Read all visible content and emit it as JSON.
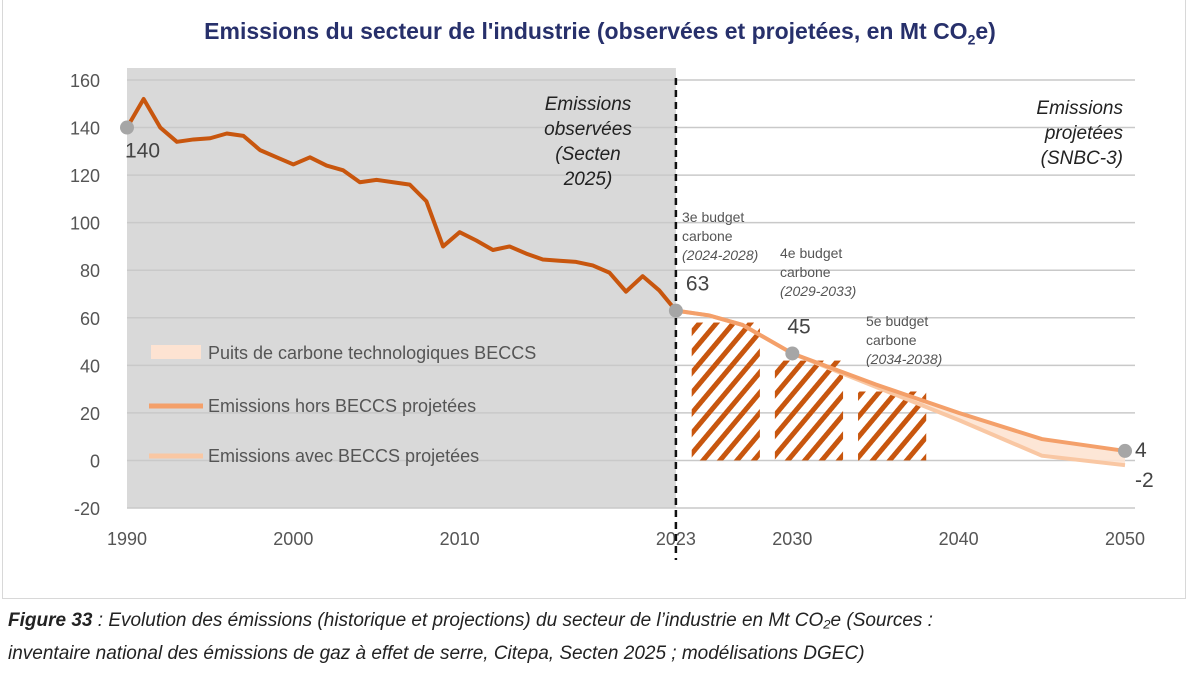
{
  "title_main": "Emissions du secteur de l'industrie (observées et projetées, en Mt CO",
  "title_sub": "2",
  "title_end": "e)",
  "caption": {
    "label": "Figure 33",
    "line1": " : Evolution des émissions (historique et projections) du secteur de l’industrie en Mt CO₂e (Sources :",
    "line2": "inventaire national des émissions de gaz à effet de serre, Citepa, Secten 2025 ; modélisations DGEC)"
  },
  "chart_data": {
    "type": "line",
    "ylim": [
      -20,
      160
    ],
    "yticks": [
      "160",
      "140",
      "120",
      "100",
      "80",
      "60",
      "40",
      "20",
      "0",
      "-20"
    ],
    "xlim": [
      1990,
      2050
    ],
    "xticks": [
      "1990",
      "2000",
      "2010",
      "2023",
      "2030",
      "2040",
      "2050"
    ],
    "grid": true,
    "legend_position": "center-left",
    "colors": {
      "observed": "#c8560e",
      "hors_beccs": "#f4a06a",
      "avec_beccs": "#f9c7a3",
      "beccs_band": "#fde3d2",
      "budget_hatch": "#c8560e",
      "observed_bg": "#d9d9d9",
      "marker": "#a6a6a6",
      "title": "#27306b"
    },
    "observed": {
      "x": [
        1990,
        1991,
        1992,
        1993,
        1994,
        1995,
        1996,
        1997,
        1998,
        1999,
        2000,
        2001,
        2002,
        2003,
        2004,
        2005,
        2006,
        2007,
        2008,
        2009,
        2010,
        2011,
        2012,
        2013,
        2014,
        2015,
        2016,
        2017,
        2018,
        2019,
        2020,
        2021,
        2022,
        2023
      ],
      "y": [
        140,
        152,
        140,
        134,
        135,
        135.5,
        137.5,
        136.5,
        130.5,
        127.5,
        124.5,
        127.5,
        124,
        122,
        117,
        118,
        117,
        116,
        109,
        90,
        96,
        92.5,
        88.5,
        90,
        87,
        84.5,
        84,
        83.5,
        82,
        79,
        71,
        77.5,
        71.5,
        63
      ]
    },
    "series": [
      {
        "name": "Emissions hors BECCS projetées",
        "x": [
          2023,
          2025,
          2027,
          2030,
          2035,
          2040,
          2045,
          2050
        ],
        "y": [
          63,
          61,
          57,
          45,
          32,
          20,
          9,
          4
        ]
      },
      {
        "name": "Emissions avec BECCS projetées",
        "x": [
          2023,
          2025,
          2027,
          2030,
          2035,
          2040,
          2045,
          2050
        ],
        "y": [
          63,
          61,
          57,
          45,
          31,
          17,
          2,
          -2
        ]
      }
    ],
    "band_name": "Puits de carbone technologiques BECCS",
    "budgets": [
      {
        "label1": "3e budget",
        "label2": "carbone",
        "label3": "(2024-2028)",
        "start": 2024,
        "end": 2028,
        "value": 58
      },
      {
        "label1": "4e budget",
        "label2": "carbone",
        "label3": "(2029-2033)",
        "start": 2029,
        "end": 2033,
        "value": 42
      },
      {
        "label1": "5e budget",
        "label2": "carbone",
        "label3": "(2034-2038)",
        "start": 2034,
        "end": 2038,
        "value": 29
      }
    ],
    "point_labels": [
      {
        "x": 1990,
        "y": 140,
        "text": "140"
      },
      {
        "x": 2023,
        "y": 63,
        "text": "63"
      },
      {
        "x": 2030,
        "y": 45,
        "text": "45"
      },
      {
        "x": 2050,
        "y": 4,
        "text": "4"
      },
      {
        "x": 2050,
        "y": -2,
        "text": "-2"
      }
    ],
    "annotations": {
      "observed": [
        "Emissions",
        "observées",
        "(Secten",
        "2025)"
      ],
      "projected": [
        "Emissions",
        "projetées",
        "(SNBC-3)"
      ]
    }
  }
}
